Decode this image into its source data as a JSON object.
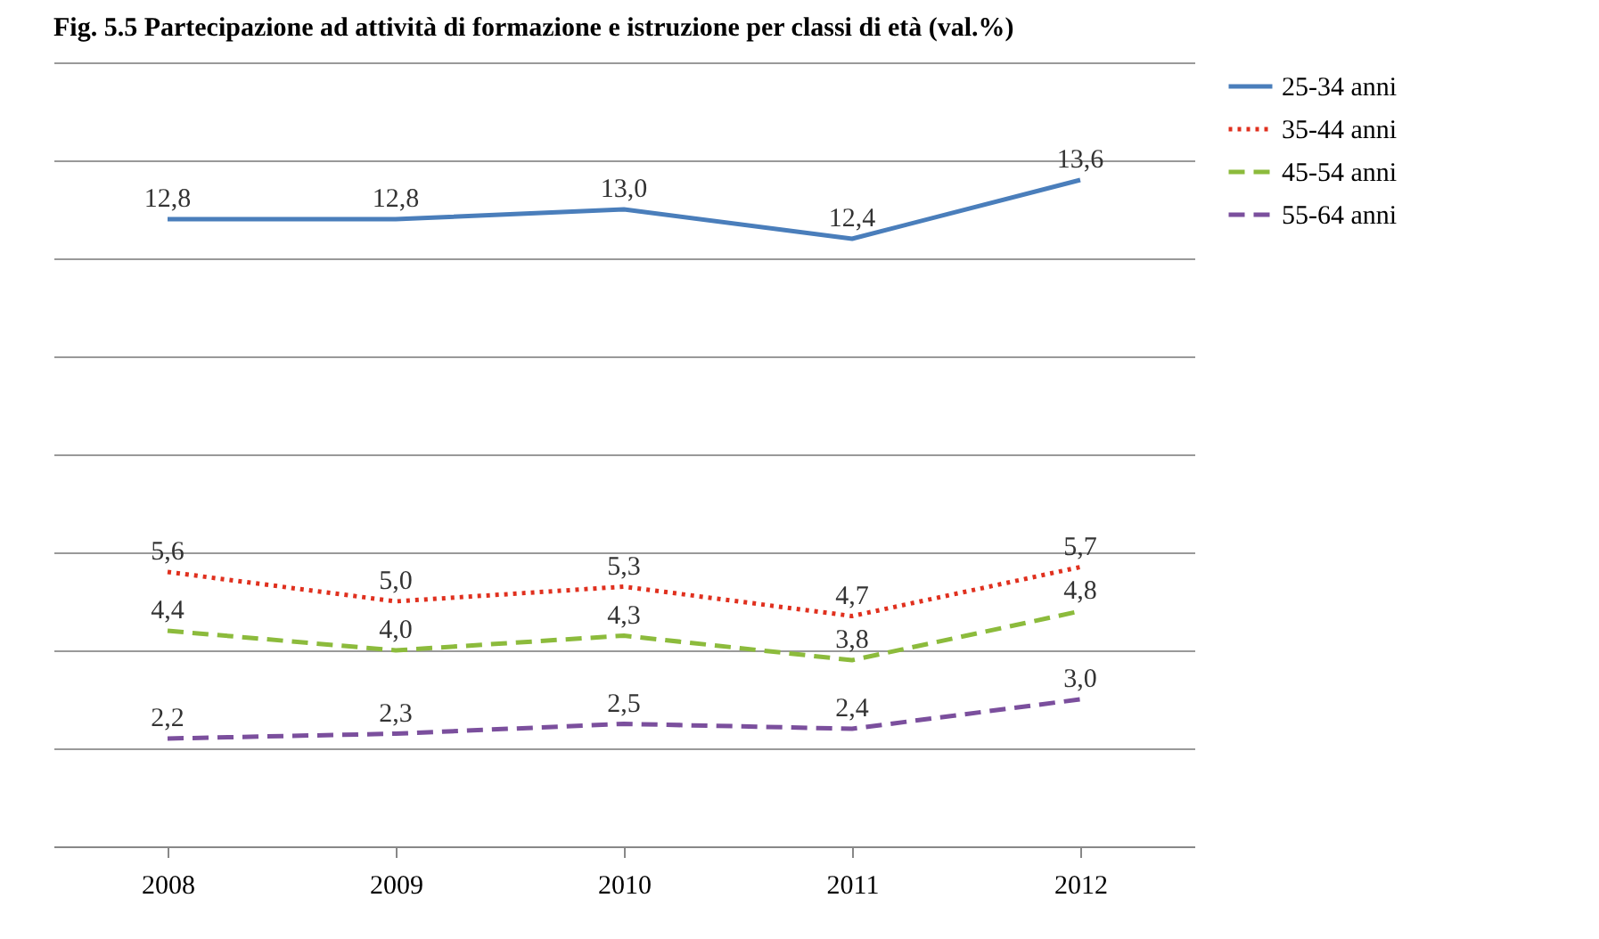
{
  "chart_data": {
    "type": "line",
    "title": "Fig. 5.5 Partecipazione ad attività di formazione e istruzione per classi di età (val.%)",
    "categories": [
      "2008",
      "2009",
      "2010",
      "2011",
      "2012"
    ],
    "series": [
      {
        "name": "25-34 anni",
        "color": "#4a7ebb",
        "line_style": "solid",
        "values": [
          12.8,
          12.8,
          13.0,
          12.4,
          13.6
        ],
        "value_labels": [
          "12,8",
          "12,8",
          "13,0",
          "12,4",
          "13,6"
        ]
      },
      {
        "name": "35-44 anni",
        "color": "#e0301e",
        "line_style": "dotted",
        "values": [
          5.6,
          5.0,
          5.3,
          4.7,
          5.7
        ],
        "value_labels": [
          "5,6",
          "5,0",
          "5,3",
          "4,7",
          "5,7"
        ]
      },
      {
        "name": "45-54 anni",
        "color": "#8cbb3c",
        "line_style": "dashed",
        "values": [
          4.4,
          4.0,
          4.3,
          3.8,
          4.8
        ],
        "value_labels": [
          "4,4",
          "4,0",
          "4,3",
          "3,8",
          "4,8"
        ]
      },
      {
        "name": "55-64 anni",
        "color": "#7b4f9d",
        "line_style": "dashed",
        "values": [
          2.2,
          2.3,
          2.5,
          2.4,
          3.0
        ],
        "value_labels": [
          "2,2",
          "2,3",
          "2,5",
          "2,4",
          "3,0"
        ]
      }
    ],
    "ylim": [
      0,
      16
    ],
    "yticks": [
      {
        "value": 0,
        "label": null
      },
      {
        "value": 2,
        "label": null
      },
      {
        "value": 4,
        "label": null
      },
      {
        "value": 6,
        "label": null
      },
      {
        "value": 8,
        "label": null
      },
      {
        "value": 10,
        "label": null
      },
      {
        "value": 12,
        "label": null
      },
      {
        "value": 14,
        "label": null
      },
      {
        "value": 16,
        "label": null
      }
    ],
    "tick_labels": "x",
    "grid": "y",
    "legend": "right"
  }
}
